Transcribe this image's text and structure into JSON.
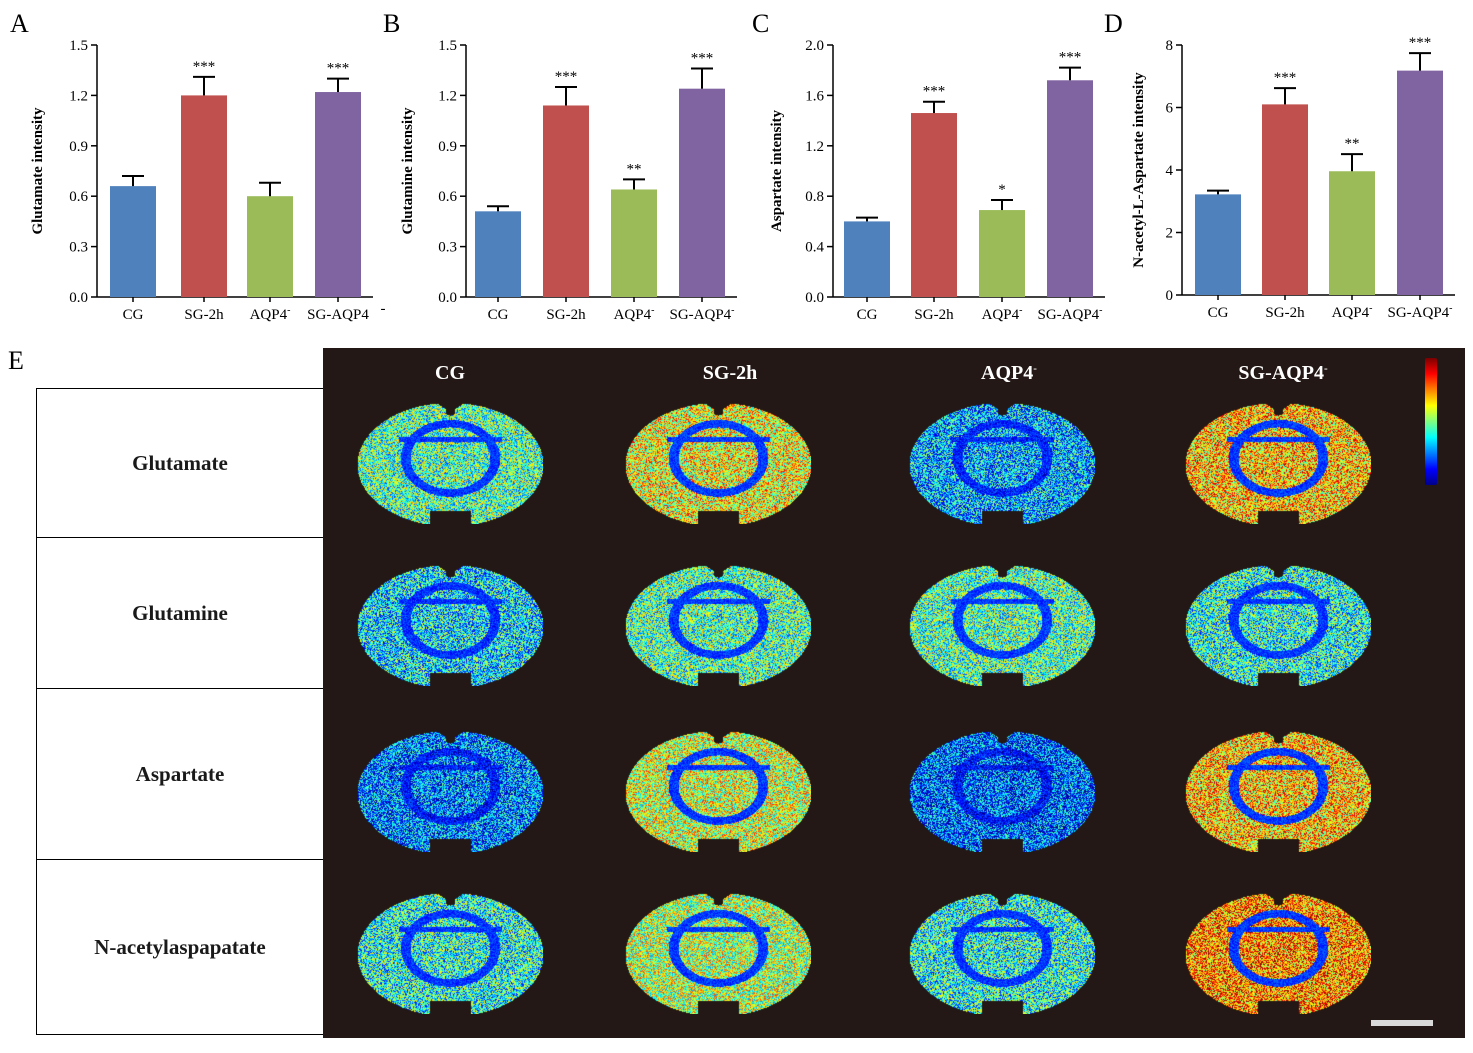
{
  "panel_labels": {
    "a": "A",
    "b": "B",
    "c": "C",
    "d": "D",
    "e": "E"
  },
  "chart_data": [
    {
      "type": "bar",
      "panel": "A",
      "ylabel": "Glutamate intensity",
      "categories": [
        "CG",
        "SG-2h",
        "AQP4-",
        "SG-AQP4-"
      ],
      "category_labels": [
        [
          "CG",
          ""
        ],
        [
          "SG-2h",
          ""
        ],
        [
          "AQP4",
          "-"
        ],
        [
          "SG-AQP4",
          ""
        ]
      ],
      "values": [
        0.66,
        1.2,
        0.6,
        1.22
      ],
      "errors": [
        0.06,
        0.11,
        0.08,
        0.08
      ],
      "significance": [
        "",
        "***",
        "",
        "***"
      ],
      "ylim": [
        0,
        1.5
      ],
      "yticks": [
        "0.0",
        "0.3",
        "0.6",
        "0.9",
        "1.2",
        "1.5"
      ],
      "yticks_values": [
        0,
        0.3,
        0.6,
        0.9,
        1.2,
        1.5
      ],
      "colors": [
        "#4f81bd",
        "#c0504d",
        "#9bbb59",
        "#8064a2"
      ],
      "extra_mark": "-"
    },
    {
      "type": "bar",
      "panel": "B",
      "ylabel": "Glutamine intensity",
      "categories": [
        "CG",
        "SG-2h",
        "AQP4-",
        "SG-AQP4-"
      ],
      "category_labels": [
        [
          "CG",
          ""
        ],
        [
          "SG-2h",
          ""
        ],
        [
          "AQP4",
          "-"
        ],
        [
          "SG-AQP4",
          "-"
        ]
      ],
      "values": [
        0.51,
        1.14,
        0.64,
        1.24
      ],
      "errors": [
        0.03,
        0.11,
        0.06,
        0.12
      ],
      "significance": [
        "",
        "***",
        "**",
        "***"
      ],
      "ylim": [
        0,
        1.5
      ],
      "yticks": [
        "0.0",
        "0.3",
        "0.6",
        "0.9",
        "1.2",
        "1.5"
      ],
      "yticks_values": [
        0,
        0.3,
        0.6,
        0.9,
        1.2,
        1.5
      ],
      "colors": [
        "#4f81bd",
        "#c0504d",
        "#9bbb59",
        "#8064a2"
      ]
    },
    {
      "type": "bar",
      "panel": "C",
      "ylabel": "Aspartate intensity",
      "categories": [
        "CG",
        "SG-2h",
        "AQP4-",
        "SG-AQP4-"
      ],
      "category_labels": [
        [
          "CG",
          ""
        ],
        [
          "SG-2h",
          ""
        ],
        [
          "AQP4",
          "-"
        ],
        [
          "SG-AQP4",
          "-"
        ]
      ],
      "values": [
        0.6,
        1.46,
        0.69,
        1.72
      ],
      "errors": [
        0.03,
        0.09,
        0.08,
        0.1
      ],
      "significance": [
        "",
        "***",
        "*",
        "***"
      ],
      "ylim": [
        0,
        2.0
      ],
      "yticks": [
        "0.0",
        "0.4",
        "0.8",
        "1.2",
        "1.6",
        "2.0"
      ],
      "yticks_values": [
        0,
        0.4,
        0.8,
        1.2,
        1.6,
        2.0
      ],
      "colors": [
        "#4f81bd",
        "#c0504d",
        "#9bbb59",
        "#8064a2"
      ]
    },
    {
      "type": "bar",
      "panel": "D",
      "ylabel": "N-acetyl-L-Aspartate intensity",
      "categories": [
        "CG",
        "SG-2h",
        "AQP4-",
        "SG-AQP4-"
      ],
      "category_labels": [
        [
          "CG",
          ""
        ],
        [
          "SG-2h",
          ""
        ],
        [
          "AQP4",
          "-"
        ],
        [
          "SG-AQP4",
          "-"
        ]
      ],
      "values": [
        3.22,
        6.1,
        3.96,
        7.18
      ],
      "errors": [
        0.12,
        0.52,
        0.55,
        0.56
      ],
      "significance": [
        "",
        "***",
        "**",
        "***"
      ],
      "ylim": [
        0,
        8
      ],
      "yticks": [
        "0",
        "2",
        "4",
        "6",
        "8"
      ],
      "yticks_values": [
        0,
        2,
        4,
        6,
        8
      ],
      "colors": [
        "#4f81bd",
        "#c0504d",
        "#9bbb59",
        "#8064a2"
      ]
    }
  ],
  "panel_e": {
    "columns": [
      {
        "label": "CG",
        "sup": ""
      },
      {
        "label": "SG-2h",
        "sup": ""
      },
      {
        "label": "AQP4",
        "sup": "-"
      },
      {
        "label": "SG-AQP4",
        "sup": "-"
      }
    ],
    "rows": [
      "Glutamate",
      "Glutamine",
      "Aspartate",
      "N-acetylaspapatate"
    ],
    "intensity_levels": [
      [
        0.45,
        0.62,
        0.3,
        0.68
      ],
      [
        0.35,
        0.45,
        0.45,
        0.4
      ],
      [
        0.25,
        0.58,
        0.22,
        0.68
      ],
      [
        0.4,
        0.55,
        0.4,
        0.74
      ]
    ],
    "colormap": "jet",
    "background_color": "#231815"
  }
}
